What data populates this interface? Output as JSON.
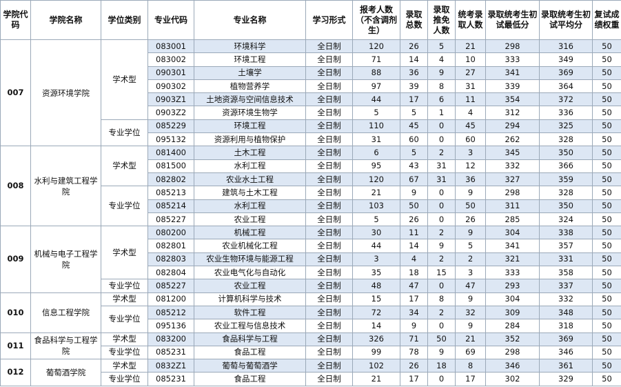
{
  "table": {
    "headers": [
      "学院代码",
      "学院名称",
      "学位类别",
      "专业代码",
      "专业名称",
      "学习形式",
      "报考人数（不含调剂生）",
      "录取总数",
      "录取推免人数",
      "统考录取人数",
      "录取统考生初试最低分",
      "录取统考生初试平均分",
      "复试成绩权重"
    ],
    "colleges": [
      {
        "code": "007",
        "name": "资源环境学院",
        "groups": [
          {
            "type": "学术型",
            "rows": [
              [
                "083001",
                "环境科学",
                "全日制",
                120,
                26,
                5,
                21,
                298,
                316,
                50
              ],
              [
                "083002",
                "环境工程",
                "全日制",
                71,
                14,
                4,
                10,
                333,
                349,
                50
              ],
              [
                "090301",
                "土壤学",
                "全日制",
                88,
                36,
                9,
                27,
                341,
                369,
                50
              ],
              [
                "090302",
                "植物营养学",
                "全日制",
                97,
                39,
                8,
                31,
                339,
                364,
                50
              ],
              [
                "0903Z1",
                "土地资源与空间信息技术",
                "全日制",
                44,
                17,
                6,
                11,
                354,
                372,
                50
              ],
              [
                "0903Z2",
                "资源环境生物学",
                "全日制",
                5,
                5,
                1,
                4,
                312,
                336,
                50
              ]
            ]
          },
          {
            "type": "专业学位",
            "rows": [
              [
                "085229",
                "环境工程",
                "全日制",
                110,
                45,
                0,
                45,
                294,
                325,
                50
              ],
              [
                "095132",
                "资源利用与植物保护",
                "全日制",
                31,
                60,
                0,
                60,
                262,
                328,
                50
              ]
            ]
          }
        ]
      },
      {
        "code": "008",
        "name": "水利与建筑工程学院",
        "groups": [
          {
            "type": "学术型",
            "rows": [
              [
                "081400",
                "土木工程",
                "全日制",
                6,
                5,
                2,
                3,
                345,
                350,
                50
              ],
              [
                "081500",
                "水利工程",
                "全日制",
                95,
                43,
                31,
                12,
                332,
                366,
                50
              ],
              [
                "082802",
                "农业水土工程",
                "全日制",
                120,
                67,
                31,
                36,
                327,
                359,
                50
              ]
            ]
          },
          {
            "type": "专业学位",
            "rows": [
              [
                "085213",
                "建筑与土木工程",
                "全日制",
                21,
                9,
                0,
                9,
                298,
                328,
                50
              ],
              [
                "085214",
                "水利工程",
                "全日制",
                103,
                50,
                0,
                50,
                311,
                350,
                50
              ],
              [
                "085227",
                "农业工程",
                "全日制",
                5,
                26,
                0,
                26,
                285,
                324,
                50
              ]
            ]
          }
        ]
      },
      {
        "code": "009",
        "name": "机械与电子工程学院",
        "groups": [
          {
            "type": "学术型",
            "rows": [
              [
                "080200",
                "机械工程",
                "全日制",
                30,
                11,
                2,
                9,
                304,
                338,
                50
              ],
              [
                "082801",
                "农业机械化工程",
                "全日制",
                44,
                14,
                9,
                5,
                341,
                357,
                50
              ],
              [
                "082803",
                "农业生物环境与能源工程",
                "全日制",
                3,
                4,
                2,
                2,
                321,
                331,
                50
              ],
              [
                "082804",
                "农业电气化与自动化",
                "全日制",
                35,
                18,
                15,
                3,
                333,
                358,
                50
              ]
            ]
          },
          {
            "type": "专业学位",
            "rows": [
              [
                "085227",
                "农业工程",
                "全日制",
                48,
                47,
                0,
                47,
                293,
                337,
                50
              ]
            ]
          }
        ]
      },
      {
        "code": "010",
        "name": "信息工程学院",
        "groups": [
          {
            "type": "学术型",
            "rows": [
              [
                "081200",
                "计算机科学与技术",
                "全日制",
                15,
                17,
                8,
                9,
                304,
                332,
                50
              ]
            ]
          },
          {
            "type": "专业学位",
            "rows": [
              [
                "085212",
                "软件工程",
                "全日制",
                72,
                34,
                2,
                32,
                309,
                348,
                50
              ],
              [
                "095136",
                "农业工程与信息技术",
                "全日制",
                14,
                9,
                0,
                9,
                284,
                318,
                50
              ]
            ]
          }
        ]
      },
      {
        "code": "011",
        "name": "食品科学与工程学院",
        "groups": [
          {
            "type": "学术型",
            "rows": [
              [
                "083200",
                "食品科学与工程",
                "全日制",
                326,
                71,
                50,
                21,
                352,
                369,
                50
              ]
            ]
          },
          {
            "type": "专业学位",
            "rows": [
              [
                "085231",
                "食品工程",
                "全日制",
                99,
                78,
                9,
                69,
                298,
                346,
                50
              ]
            ]
          }
        ]
      },
      {
        "code": "012",
        "name": "葡萄酒学院",
        "groups": [
          {
            "type": "学术型",
            "rows": [
              [
                "0832Z1",
                "葡萄与葡萄酒学",
                "全日制",
                102,
                26,
                18,
                8,
                346,
                361,
                50
              ]
            ]
          },
          {
            "type": "专业学位",
            "rows": [
              [
                "085231",
                "食品工程",
                "全日制",
                21,
                17,
                0,
                17,
                302,
                329,
                50
              ]
            ]
          }
        ]
      }
    ]
  }
}
